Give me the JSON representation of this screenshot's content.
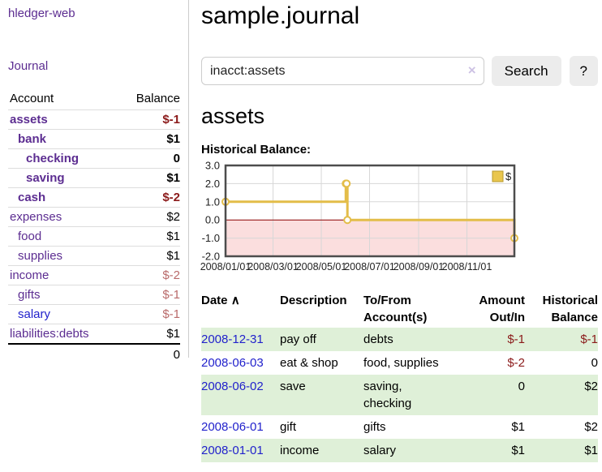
{
  "colors": {
    "link_purple": "#5c2d91",
    "link_blue": "#2222cc",
    "negative_strong": "#8b1a1a",
    "negative_soft": "#b96a6a",
    "row_stripe_green": "#dff0d8",
    "chart_line_gold": "#e3bd49",
    "chart_negative_fill": "#fbdede",
    "zero_line_red": "#8b0000",
    "grid_gray": "#d7d7d7",
    "chart_border": "#4d4d4d"
  },
  "sidebar": {
    "brand": "hledger-web",
    "journal_label": "Journal",
    "accounts_table": {
      "account_header": "Account",
      "balance_header": "Balance",
      "rows": [
        {
          "name": "assets",
          "indent": 1,
          "bold": true,
          "link": "purple",
          "balance": "$-1",
          "tone": "dark-red"
        },
        {
          "name": "bank",
          "indent": 2,
          "bold": true,
          "link": "purple",
          "balance": "$1",
          "tone": "black"
        },
        {
          "name": "checking",
          "indent": 3,
          "bold": true,
          "link": "purple",
          "balance": "0",
          "tone": "black"
        },
        {
          "name": "saving",
          "indent": 3,
          "bold": true,
          "link": "purple",
          "balance": "$1",
          "tone": "black"
        },
        {
          "name": "cash",
          "indent": 2,
          "bold": true,
          "link": "purple",
          "balance": "$-2",
          "tone": "dark-red"
        },
        {
          "name": "expenses",
          "indent": 1,
          "bold": false,
          "link": "purple",
          "balance": "$2",
          "tone": "black"
        },
        {
          "name": "food",
          "indent": 2,
          "bold": false,
          "link": "purple",
          "balance": "$1",
          "tone": "black"
        },
        {
          "name": "supplies",
          "indent": 2,
          "bold": false,
          "link": "purple",
          "balance": "$1",
          "tone": "black"
        },
        {
          "name": "income",
          "indent": 1,
          "bold": false,
          "link": "purple",
          "balance": "$-2",
          "tone": "soft-red"
        },
        {
          "name": "gifts",
          "indent": 2,
          "bold": false,
          "link": "purple",
          "balance": "$-1",
          "tone": "soft-red"
        },
        {
          "name": "salary",
          "indent": 2,
          "bold": false,
          "link": "blue",
          "balance": "$-1",
          "tone": "soft-red"
        },
        {
          "name": "liabilities:debts",
          "indent": 1,
          "bold": false,
          "link": "purple",
          "balance": "$1",
          "tone": "black"
        }
      ],
      "total": "0"
    }
  },
  "header": {
    "title": "sample.journal"
  },
  "search": {
    "value": "inacct:assets",
    "clear_icon": "×",
    "button_label": "Search",
    "help_label": "?"
  },
  "account_page": {
    "title": "assets",
    "chart_label": "Historical Balance:"
  },
  "chart_data": {
    "type": "line",
    "step": true,
    "title": "Historical Balance",
    "series": [
      {
        "name": "$",
        "points": [
          [
            "2008-01-01",
            1
          ],
          [
            "2008-06-01",
            2
          ],
          [
            "2008-06-02",
            2
          ],
          [
            "2008-06-03",
            0
          ],
          [
            "2008-12-31",
            -1
          ]
        ]
      }
    ],
    "ylim": [
      -2,
      3
    ],
    "y_tick_labels": [
      "3.0",
      "2.0",
      "1.0",
      "0.0",
      "-1.0",
      "-2.0"
    ],
    "y_tick_values": [
      3,
      2,
      1,
      0,
      -1,
      -2
    ],
    "x_range_days": [
      0,
      365
    ],
    "x_tick_days": [
      0,
      60,
      121,
      182,
      244,
      305
    ],
    "x_tick_labels": [
      "2008/01/01",
      "2008/03/01",
      "2008/05/01",
      "2008/07/01",
      "2008/09/01",
      "2008/11/01"
    ],
    "legend": {
      "label": "$",
      "position": "top-right"
    },
    "grid": true,
    "negative_region_shaded": true
  },
  "register_table": {
    "headers": {
      "date": "Date",
      "sort_icon": "∧",
      "description": "Description",
      "accounts": "To/From Account(s)",
      "amount": "Amount Out/In",
      "balance": "Historical Balance"
    },
    "rows": [
      {
        "date": "2008-12-31",
        "description": "pay off",
        "accounts": "debts",
        "amount": "$-1",
        "amount_neg": true,
        "balance": "$-1",
        "balance_neg": true
      },
      {
        "date": "2008-06-03",
        "description": "eat & shop",
        "accounts": "food, supplies",
        "amount": "$-2",
        "amount_neg": true,
        "balance": "0",
        "balance_neg": false
      },
      {
        "date": "2008-06-02",
        "description": "save",
        "accounts": "saving, checking",
        "amount": "0",
        "amount_neg": false,
        "balance": "$2",
        "balance_neg": false
      },
      {
        "date": "2008-06-01",
        "description": "gift",
        "accounts": "gifts",
        "amount": "$1",
        "amount_neg": false,
        "balance": "$2",
        "balance_neg": false
      },
      {
        "date": "2008-01-01",
        "description": "income",
        "accounts": "salary",
        "amount": "$1",
        "amount_neg": false,
        "balance": "$1",
        "balance_neg": false
      }
    ]
  }
}
